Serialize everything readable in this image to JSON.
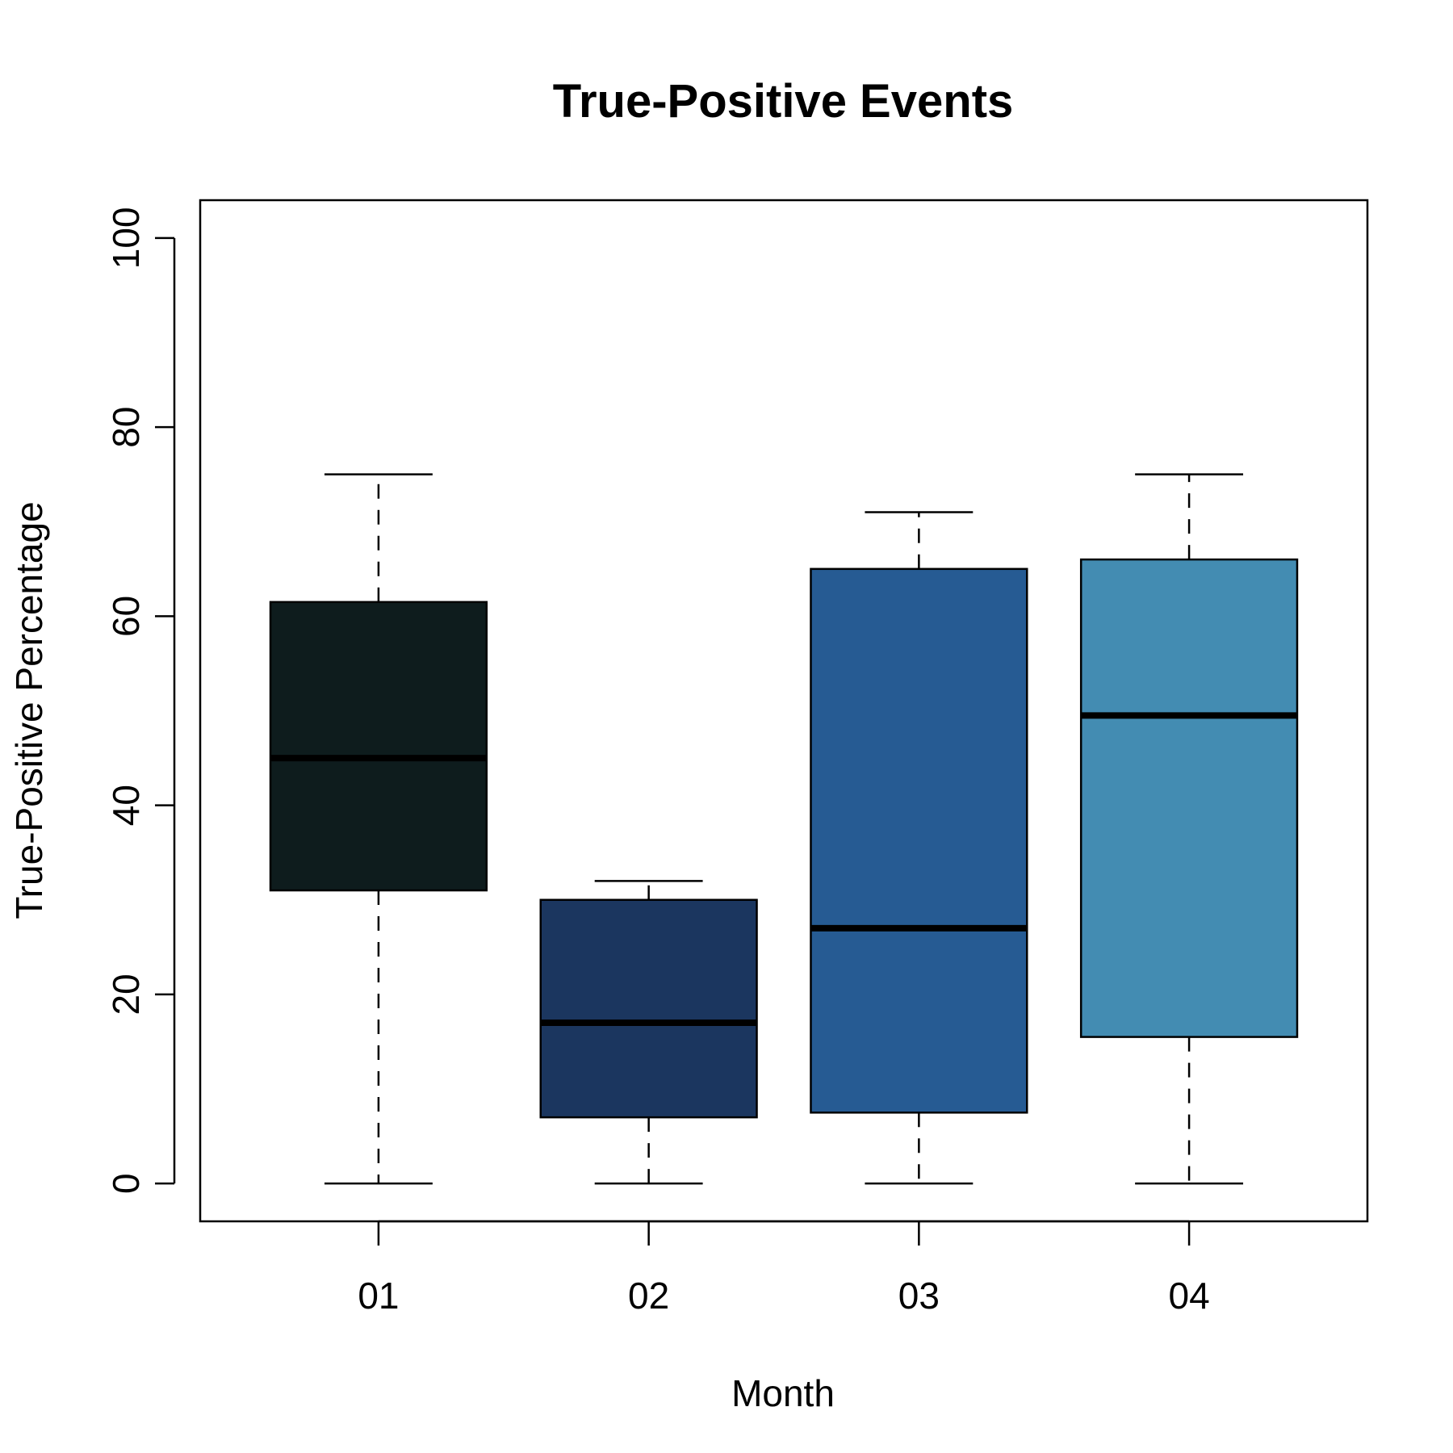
{
  "chart_data": {
    "type": "boxplot",
    "title": "True-Positive Events",
    "xlabel": "Month",
    "ylabel": "True-Positive Percentage",
    "categories": [
      "01",
      "02",
      "03",
      "04"
    ],
    "ylim": [
      -4,
      104
    ],
    "yticks": [
      0,
      20,
      40,
      60,
      80,
      100
    ],
    "grid": false,
    "boxes": [
      {
        "category": "01",
        "min": 0,
        "q1": 31,
        "median": 45,
        "q3": 61.5,
        "max": 75,
        "color": "#0e1c1d"
      },
      {
        "category": "02",
        "min": 0,
        "q1": 7,
        "median": 17,
        "q3": 30,
        "max": 32,
        "color": "#1b365f"
      },
      {
        "category": "03",
        "min": 0,
        "q1": 7.5,
        "median": 27,
        "q3": 65,
        "max": 71,
        "color": "#265b93"
      },
      {
        "category": "04",
        "min": 0,
        "q1": 15.5,
        "median": 49.5,
        "q3": 66,
        "max": 75,
        "color": "#438cb2"
      }
    ]
  }
}
